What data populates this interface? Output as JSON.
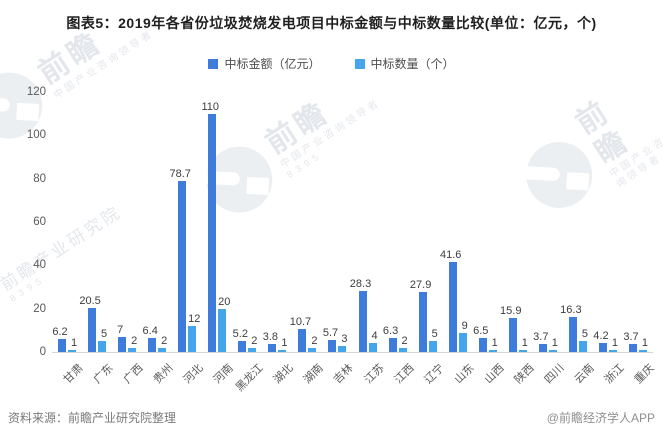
{
  "page": {
    "title": "图表5：2019年各省份垃圾焚烧发电项目中标金额与中标数量比较(单位：亿元，个)",
    "source_left": "资料来源：前瞻产业研究院整理",
    "source_right": "@前瞻经济学人APP",
    "watermark_brand": "前瞻",
    "watermark_text": "前瞻产业研究院",
    "watermark_sub": "中国产业咨询领导者",
    "watermark_digits": "8395"
  },
  "colors": {
    "amount_bar": "#3D7CDB",
    "count_bar": "#45A5EC",
    "axis_text": "#595959",
    "value_label": "#3d3d3d"
  },
  "chart_data": {
    "type": "bar",
    "title": "2019年各省份垃圾焚烧发电项目中标金额与中标数量比较",
    "categories": [
      "甘肃",
      "广东",
      "广西",
      "贵州",
      "河北",
      "河南",
      "黑龙江",
      "湖北",
      "湖南",
      "吉林",
      "江苏",
      "江西",
      "辽宁",
      "山东",
      "山西",
      "陕西",
      "四川",
      "云南",
      "浙江",
      "重庆"
    ],
    "series": [
      {
        "name": "中标金额（亿元）",
        "values": [
          6.2,
          20.5,
          7,
          6.4,
          78.7,
          110,
          5.2,
          3.8,
          10.7,
          5.7,
          28.3,
          6.3,
          27.9,
          41.6,
          6.5,
          15.9,
          3.7,
          16.3,
          4.2,
          3.7
        ]
      },
      {
        "name": "中标数量（个）",
        "values": [
          1,
          5,
          2,
          2,
          12,
          20,
          2,
          1,
          2,
          3,
          4,
          2,
          5,
          9,
          1,
          1,
          1,
          5,
          1,
          1
        ]
      }
    ],
    "xlabel": "",
    "ylabel": "",
    "ylim": [
      0,
      120
    ],
    "y_ticks": [
      0,
      20,
      40,
      60,
      80,
      100,
      120
    ],
    "grid": false,
    "legend_position": "top",
    "value_labels": true
  }
}
